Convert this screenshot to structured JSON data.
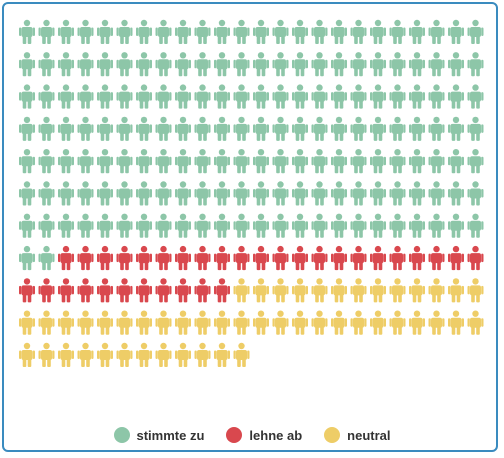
{
  "chart_data": {
    "type": "pictogram",
    "categories": [
      "stimmte zu",
      "lehne ab",
      "neutral"
    ],
    "values": [
      170,
      33,
      49
    ],
    "total": 252,
    "layout": {
      "columns": 24,
      "rows": 11,
      "fill_order": "row-major"
    },
    "colors": {
      "stimmte zu": "#8dc6a8",
      "lehne ab": "#d9484e",
      "neutral": "#eecd67"
    },
    "icon": "person-icon",
    "legend_position": "bottom"
  },
  "legend": {
    "items": [
      {
        "label": "stimmte zu",
        "color": "#8dc6a8"
      },
      {
        "label": "lehne ab",
        "color": "#d9484e"
      },
      {
        "label": "neutral",
        "color": "#eecd67"
      }
    ]
  },
  "frame": {
    "border_color": "#3a8bbf"
  }
}
